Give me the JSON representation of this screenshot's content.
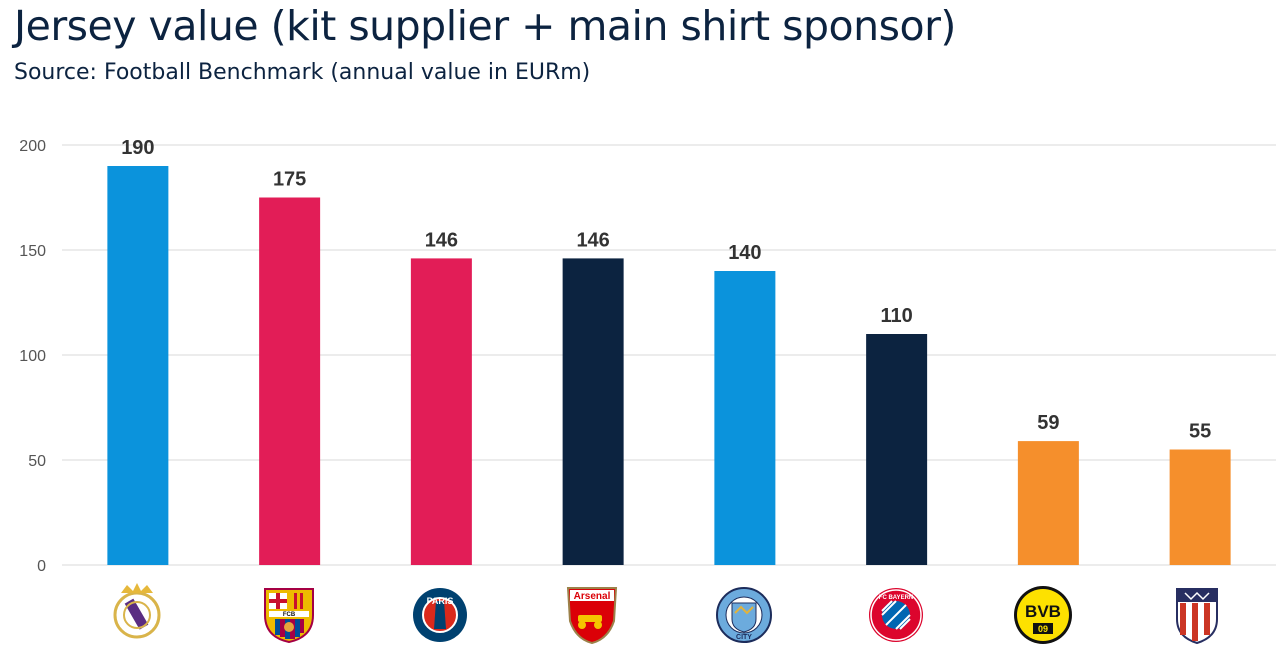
{
  "title": "Jersey value (kit supplier + main shirt sponsor)",
  "subtitle": "Source: Football Benchmark (annual value in EURm)",
  "colors": {
    "blue": "#0b93dc",
    "red": "#e21d57",
    "navy": "#0c2340",
    "orange": "#f58f2c",
    "grid": "#d9d9d9"
  },
  "chart_data": {
    "type": "bar",
    "title": "Jersey value (kit supplier + main shirt sponsor)",
    "subtitle": "Source: Football Benchmark (annual value in EURm)",
    "xlabel": "",
    "ylabel": "",
    "ylim": [
      0,
      200
    ],
    "yticks": [
      0,
      50,
      100,
      150,
      200
    ],
    "grid": true,
    "legend": "none",
    "categories": [
      "Real Madrid",
      "FC Barcelona",
      "Paris Saint-Germain",
      "Arsenal",
      "Manchester City",
      "FC Bayern München",
      "Borussia Dortmund",
      "Atlético de Madrid"
    ],
    "category_labels_shown_as": "club crest icons",
    "values": [
      190,
      175,
      146,
      146,
      140,
      110,
      59,
      55
    ],
    "bar_colors": [
      "#0b93dc",
      "#e21d57",
      "#e21d57",
      "#0c2340",
      "#0b93dc",
      "#0c2340",
      "#f58f2c",
      "#f58f2c"
    ],
    "data_labels": [
      "190",
      "175",
      "146",
      "146",
      "140",
      "110",
      "59",
      "55"
    ]
  },
  "crests": [
    {
      "icon": "real-madrid-crest-icon"
    },
    {
      "icon": "fc-barcelona-crest-icon",
      "text": "FCB"
    },
    {
      "icon": "psg-crest-icon",
      "text": "PARIS"
    },
    {
      "icon": "arsenal-crest-icon",
      "text": "Arsenal"
    },
    {
      "icon": "manchester-city-crest-icon",
      "text": "CITY"
    },
    {
      "icon": "fc-bayern-crest-icon",
      "text": "FC BAYERN"
    },
    {
      "icon": "bvb-crest-icon",
      "text": "BVB",
      "text2": "09"
    },
    {
      "icon": "atletico-madrid-crest-icon"
    }
  ]
}
